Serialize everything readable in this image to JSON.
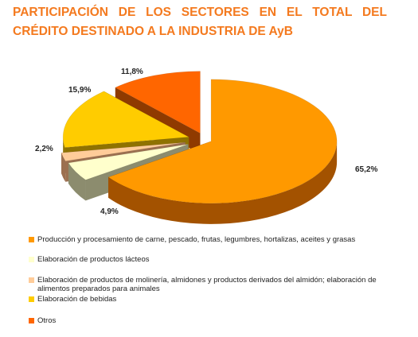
{
  "title": {
    "line1": "PARTICIPACIÓN DE LOS SECTORES EN EL TOTAL DEL",
    "line2": "CRÉDITO DESTINADO A LA INDUSTRIA DE AyB"
  },
  "chart_data": {
    "type": "pie",
    "style": "3d-exploded",
    "title": "PARTICIPACIÓN DE LOS SECTORES EN EL TOTAL DEL CRÉDITO DESTINADO A LA INDUSTRIA DE AyB",
    "legend_position": "bottom",
    "slices": [
      {
        "name": "Producción y procesamiento de carne, pescado, frutas, legumbres, hortalizas, aceites y grasas",
        "value": 65.2,
        "label": "65,2%",
        "color": "#FF9900",
        "side_color": "#A35200"
      },
      {
        "name": "Elaboración de productos lácteos",
        "value": 4.9,
        "label": "4,9%",
        "color": "#FFFFCC",
        "side_color": "#8C8C6E"
      },
      {
        "name": "Elaboración de productos de molinería, almidones y productos derivados del almidón; elaboración de alimentos preparados para animales",
        "value": 2.2,
        "label": "2,2%",
        "color": "#FFCC99",
        "side_color": "#9C7050"
      },
      {
        "name": "Elaboración de bebidas",
        "value": 15.9,
        "label": "15,9%",
        "color": "#FFCC00",
        "side_color": "#8F7200"
      },
      {
        "name": "Otros",
        "value": 11.8,
        "label": "11,8%",
        "color": "#FF6600",
        "side_color": "#8F3A00"
      }
    ]
  },
  "legend": [
    {
      "label": "Producción y procesamiento de carne, pescado, frutas, legumbres, hortalizas, aceites y grasas",
      "color": "#FF9900"
    },
    {
      "label": "Elaboración de productos lácteos",
      "color": "#FFFFCC"
    },
    {
      "label": "Elaboración de productos de molinería, almidones y productos derivados del almidón; elaboración de alimentos preparados para animales",
      "color": "#FFCC99"
    },
    {
      "label": "Elaboración de bebidas",
      "color": "#FFCC00"
    },
    {
      "label": "Otros",
      "color": "#FF6600"
    }
  ]
}
